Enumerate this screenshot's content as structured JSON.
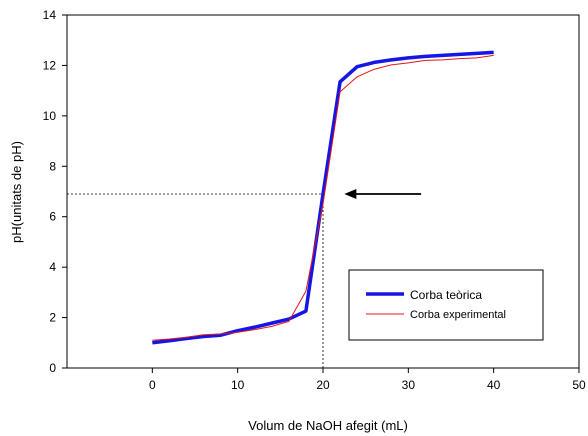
{
  "chart_data": {
    "type": "line",
    "xlabel": "Volum de NaOH afegit (mL)",
    "ylabel": "pH(unitats de pH)",
    "xlim": [
      -10,
      50
    ],
    "ylim": [
      0,
      14
    ],
    "xticks": [
      0,
      10,
      20,
      30,
      40,
      50
    ],
    "yticks": [
      0,
      2,
      4,
      6,
      8,
      10,
      12,
      14
    ],
    "grid": false,
    "legend_position": "bottom-right",
    "series": [
      {
        "name": "Corba teòrica",
        "color": "#1515e6",
        "x": [
          0,
          2,
          4,
          6,
          8,
          10,
          12,
          14,
          16,
          18,
          20,
          22,
          24,
          26,
          28,
          30,
          32,
          34,
          36,
          38,
          40
        ],
        "y": [
          1.0,
          1.08,
          1.17,
          1.25,
          1.3,
          1.48,
          1.62,
          1.78,
          1.94,
          2.26,
          6.9,
          11.35,
          11.95,
          12.12,
          12.22,
          12.3,
          12.36,
          12.4,
          12.44,
          12.48,
          12.52
        ]
      },
      {
        "name": "Corba experimental",
        "color": "#e61515",
        "x": [
          0,
          2,
          4,
          6,
          8,
          10,
          12,
          14,
          16,
          18,
          20,
          22,
          24,
          26,
          28,
          30,
          32,
          34,
          36,
          38,
          40
        ],
        "y": [
          1.1,
          1.15,
          1.22,
          1.32,
          1.35,
          1.42,
          1.52,
          1.65,
          1.85,
          3.05,
          6.5,
          10.95,
          11.55,
          11.85,
          12.02,
          12.1,
          12.2,
          12.22,
          12.27,
          12.3,
          12.4
        ]
      }
    ],
    "annotations": {
      "equivalence_point": {
        "x": 20,
        "y": 6.9
      },
      "arrow": {
        "from_x": 31.5,
        "to_x": 22.5,
        "y": 6.9
      }
    }
  }
}
